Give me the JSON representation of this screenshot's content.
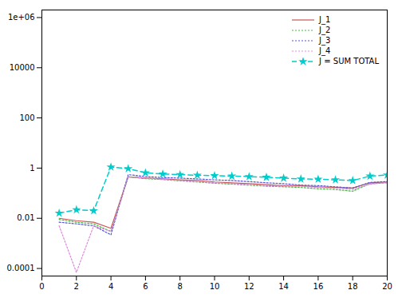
{
  "chart_data": {
    "type": "line",
    "x": [
      1,
      2,
      3,
      4,
      5,
      6,
      7,
      8,
      9,
      10,
      11,
      12,
      13,
      14,
      15,
      16,
      17,
      18,
      19,
      20
    ],
    "series": [
      {
        "name": "J_1",
        "color": "#cc5555",
        "line_style": "solid",
        "values": [
          0.01,
          0.008,
          0.007,
          0.004,
          0.45,
          0.4,
          0.37,
          0.34,
          0.32,
          0.28,
          0.26,
          0.24,
          0.22,
          0.2,
          0.2,
          0.18,
          0.17,
          0.16,
          0.26,
          0.28
        ]
      },
      {
        "name": "J_2",
        "color": "#44bb44",
        "line_style": "dotted",
        "values": [
          0.009,
          0.007,
          0.006,
          0.003,
          0.45,
          0.38,
          0.35,
          0.31,
          0.28,
          0.25,
          0.23,
          0.21,
          0.19,
          0.18,
          0.17,
          0.15,
          0.14,
          0.12,
          0.24,
          0.26
        ]
      },
      {
        "name": "J_3",
        "color": "#5555cc",
        "line_style": "dotted",
        "values": [
          0.007,
          0.006,
          0.005,
          0.0022,
          0.55,
          0.46,
          0.42,
          0.4,
          0.37,
          0.34,
          0.32,
          0.29,
          0.26,
          0.24,
          0.21,
          0.2,
          0.18,
          0.16,
          0.27,
          0.29
        ]
      },
      {
        "name": "J_4",
        "color": "#dd88dd",
        "line_style": "dotted",
        "values": [
          0.005,
          7e-05,
          0.005,
          0.003,
          0.45,
          0.4,
          0.36,
          0.32,
          0.29,
          0.26,
          0.24,
          0.22,
          0.2,
          0.19,
          0.19,
          0.17,
          0.16,
          0.14,
          0.23,
          0.27
        ]
      },
      {
        "name": "J = SUM TOTAL",
        "color": "#00cccc",
        "line_style": "dashed",
        "marker": "star",
        "values": [
          0.016,
          0.022,
          0.02,
          1.1,
          0.95,
          0.65,
          0.58,
          0.55,
          0.52,
          0.5,
          0.48,
          0.46,
          0.43,
          0.4,
          0.37,
          0.36,
          0.34,
          0.32,
          0.48,
          0.53
        ]
      }
    ],
    "xlim": [
      0,
      20
    ],
    "xticks": [
      0,
      2,
      4,
      6,
      8,
      10,
      12,
      14,
      16,
      18,
      20
    ],
    "ylim": [
      5e-05,
      2000000
    ],
    "yticks": [
      0.0001,
      0.01,
      1,
      100,
      10000,
      {
        "value": 1000000,
        "label": "1e+06"
      }
    ],
    "log": "y",
    "grid": false,
    "legend": "upper right"
  }
}
